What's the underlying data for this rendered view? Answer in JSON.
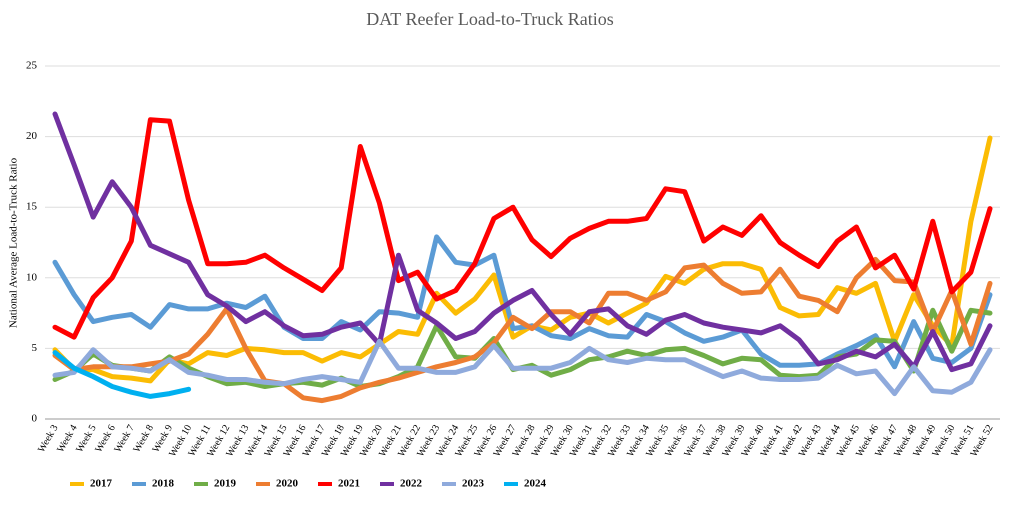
{
  "chart_data": {
    "type": "line",
    "title": "DAT Reefer Load-to-Truck Ratios",
    "y_label": "National Average Load-to-Truck Ratio",
    "categories": [
      "Week 3",
      "Week 4",
      "Week 5",
      "Week 6",
      "Week 7",
      "Week 8",
      "Week 9",
      "Week 10",
      "Week 11",
      "Week 12",
      "Week 13",
      "Week 14",
      "Week 15",
      "Week 16",
      "Week 17",
      "Week 18",
      "Week 19",
      "Week 20",
      "Week 21",
      "Week 22",
      "Week 23",
      "Week 24",
      "Week 25",
      "Week 26",
      "Week 27",
      "Week 28",
      "Week 29",
      "Week 30",
      "Week 31",
      "Week 32",
      "Week 33",
      "Week 34",
      "Week 35",
      "Week 36",
      "Week 37",
      "Week 38",
      "Week 39",
      "Week 40",
      "Week 41",
      "Week 42",
      "Week 43",
      "Week 44",
      "Week 45",
      "Week 46",
      "Week 47",
      "Week 48",
      "Week 49",
      "Week 50",
      "Week 51",
      "Week 52"
    ],
    "ylim": [
      0,
      25
    ],
    "yticks": [
      0,
      5,
      10,
      15,
      20,
      25
    ],
    "grid": true,
    "legend": "bottom",
    "series": [
      {
        "name": "2017",
        "color": "#fbbc04",
        "values": [
          4.9,
          3.5,
          3.5,
          3,
          2.9,
          2.7,
          4.2,
          3.9,
          4.7,
          4.5,
          5,
          4.9,
          4.7,
          4.7,
          4.1,
          4.7,
          4.4,
          5.3,
          6.2,
          6,
          8.9,
          7.5,
          8.5,
          10.2,
          5.8,
          6.6,
          6.3,
          7.2,
          7.5,
          6.8,
          7.5,
          8.2,
          10.1,
          9.6,
          10.6,
          11,
          11,
          10.6,
          7.9,
          7.3,
          7.4,
          9.3,
          8.9,
          9.6,
          5.5,
          8.8,
          6.6,
          5.2,
          14,
          19.9
        ]
      },
      {
        "name": "2018",
        "color": "#5b9bd5",
        "values": [
          11.1,
          8.8,
          6.9,
          7.2,
          7.4,
          6.5,
          8.1,
          7.8,
          7.8,
          8.2,
          7.9,
          8.7,
          6.5,
          5.7,
          5.7,
          6.9,
          6.3,
          7.6,
          7.5,
          7.2,
          12.9,
          11.1,
          10.9,
          11.6,
          6.4,
          6.6,
          5.9,
          5.7,
          6.4,
          5.9,
          5.8,
          7.4,
          6.9,
          6.1,
          5.5,
          5.8,
          6.3,
          4.6,
          3.8,
          3.8,
          3.9,
          4.6,
          5.2,
          5.9,
          3.7,
          6.9,
          4.3,
          4,
          5,
          8.8
        ]
      },
      {
        "name": "2019",
        "color": "#70ad47",
        "values": [
          2.8,
          3.4,
          4.6,
          3.8,
          3.6,
          3.4,
          4.4,
          3.6,
          3,
          2.5,
          2.6,
          2.3,
          2.5,
          2.6,
          2.4,
          2.9,
          2.3,
          2.5,
          3,
          3.7,
          6.6,
          4.4,
          4.3,
          5.7,
          3.5,
          3.8,
          3.1,
          3.5,
          4.2,
          4.4,
          4.8,
          4.5,
          4.9,
          5,
          4.5,
          3.9,
          4.3,
          4.2,
          3.1,
          3,
          3.1,
          4.4,
          4.6,
          5.6,
          5.5,
          3.4,
          7.7,
          4.8,
          7.7,
          7.5
        ]
      },
      {
        "name": "2020",
        "color": "#ed7d31",
        "values": [
          4.5,
          3.5,
          3.7,
          3.7,
          3.7,
          3.9,
          4.1,
          4.6,
          6,
          7.8,
          5,
          2.7,
          2.5,
          1.5,
          1.3,
          1.6,
          2.2,
          2.6,
          2.9,
          3.3,
          3.7,
          4,
          4.4,
          5.4,
          7.2,
          6.4,
          7.6,
          7.6,
          6.8,
          8.9,
          8.9,
          8.4,
          9,
          10.7,
          10.9,
          9.6,
          8.9,
          9,
          10.6,
          8.7,
          8.4,
          7.6,
          10,
          11.3,
          9.8,
          9.7,
          6.2,
          9.1,
          5.3,
          9.6
        ]
      },
      {
        "name": "2021",
        "color": "#ff0000",
        "values": [
          6.5,
          5.8,
          8.6,
          10,
          12.6,
          21.2,
          21.1,
          15.5,
          11,
          11,
          11.1,
          11.6,
          10.7,
          9.9,
          9.1,
          10.7,
          19.3,
          15.3,
          9.8,
          10.4,
          8.5,
          9.1,
          11,
          14.2,
          15,
          12.7,
          11.5,
          12.8,
          13.5,
          14,
          14,
          14.2,
          16.3,
          16.1,
          12.6,
          13.6,
          13,
          14.4,
          12.5,
          11.6,
          10.8,
          12.6,
          13.6,
          10.7,
          11.6,
          9.2,
          14,
          9,
          10.4,
          14.9
        ]
      },
      {
        "name": "2022",
        "color": "#7030a0",
        "values": [
          21.6,
          18,
          14.3,
          16.8,
          15,
          12.3,
          11.7,
          11.1,
          8.8,
          8,
          6.9,
          7.6,
          6.6,
          5.9,
          6,
          6.5,
          6.8,
          5.3,
          11.6,
          7.7,
          6.8,
          5.7,
          6.2,
          7.5,
          8.4,
          9.1,
          7.4,
          6,
          7.6,
          7.8,
          6.6,
          6,
          7,
          7.4,
          6.8,
          6.5,
          6.3,
          6.1,
          6.6,
          5.6,
          3.9,
          4.2,
          4.8,
          4.4,
          5.3,
          3.7,
          6.2,
          3.5,
          3.9,
          6.6
        ]
      },
      {
        "name": "2023",
        "color": "#8faadc",
        "values": [
          3.1,
          3.3,
          4.9,
          3.7,
          3.6,
          3.4,
          4.2,
          3.3,
          3.1,
          2.8,
          2.8,
          2.6,
          2.5,
          2.8,
          3,
          2.8,
          2.6,
          5.5,
          3.6,
          3.6,
          3.3,
          3.3,
          3.7,
          5.2,
          3.6,
          3.6,
          3.6,
          4,
          5,
          4.2,
          4,
          4.3,
          4.2,
          4.2,
          3.6,
          3,
          3.4,
          2.9,
          2.8,
          2.8,
          2.9,
          3.8,
          3.2,
          3.4,
          1.8,
          3.7,
          2,
          1.9,
          2.6,
          4.9
        ]
      },
      {
        "name": "2024",
        "color": "#00b0f0",
        "values": [
          4.7,
          3.6,
          3,
          2.3,
          1.9,
          1.6,
          1.8,
          2.1,
          null,
          null,
          null,
          null,
          null,
          null,
          null,
          null,
          null,
          null,
          null,
          null,
          null,
          null,
          null,
          null,
          null,
          null,
          null,
          null,
          null,
          null,
          null,
          null,
          null,
          null,
          null,
          null,
          null,
          null,
          null,
          null,
          null,
          null,
          null,
          null,
          null,
          null,
          null,
          null,
          null,
          null
        ]
      }
    ]
  }
}
